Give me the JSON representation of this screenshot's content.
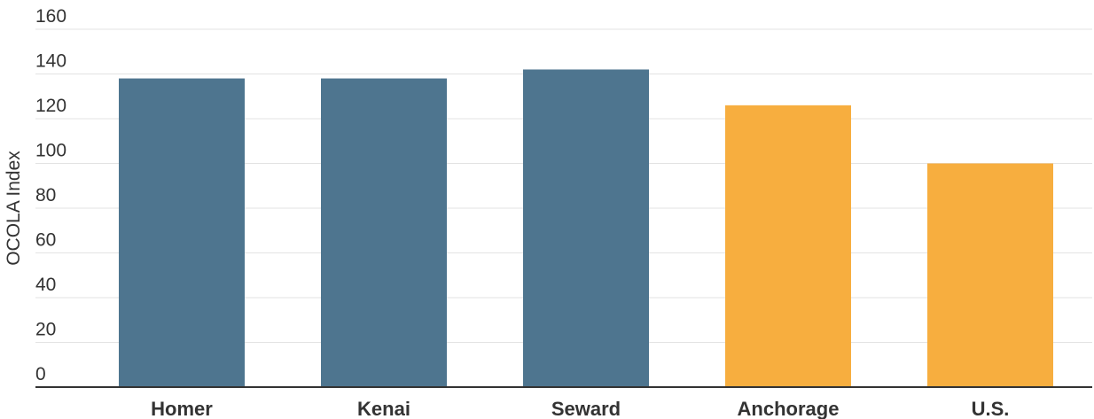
{
  "chart_data": {
    "type": "bar",
    "categories": [
      "Homer",
      "Kenai",
      "Seward",
      "Anchorage",
      "U.S."
    ],
    "values": [
      138,
      138,
      142,
      126,
      100
    ],
    "bar_colors": [
      "#4e758f",
      "#4e758f",
      "#4e758f",
      "#f7ae3f",
      "#f7ae3f"
    ],
    "title": "",
    "xlabel": "",
    "ylabel": "OCOLA Index",
    "ylim": [
      0,
      160
    ],
    "yticks": [
      0,
      20,
      40,
      60,
      80,
      100,
      120,
      140,
      160
    ],
    "grid": true
  }
}
